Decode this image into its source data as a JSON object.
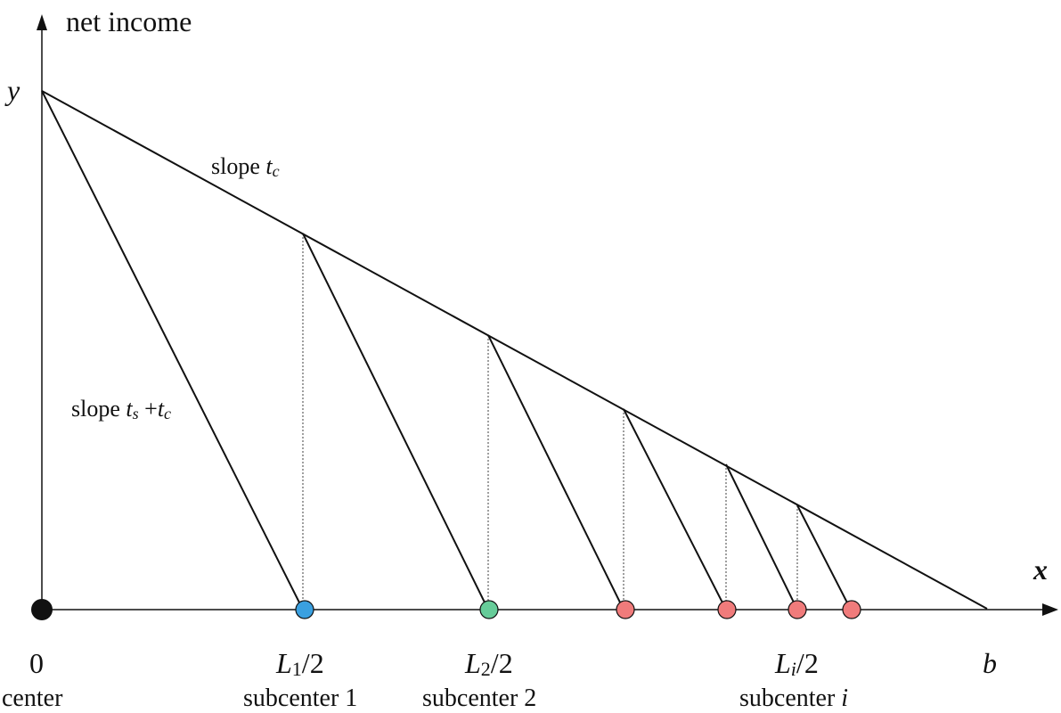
{
  "axes": {
    "y_label": "net income",
    "x_label": "x",
    "y_intercept_label": "y"
  },
  "slopes": {
    "upper_prefix": "slope ",
    "upper_t": "t",
    "upper_sub": "c",
    "lower_prefix": "slope ",
    "lower_t1": "t",
    "lower_sub1": "s",
    "lower_plus": " +",
    "lower_t2": "t",
    "lower_sub2": "c"
  },
  "x_ticks": {
    "origin": "0",
    "end": "b",
    "L1": {
      "letter": "L",
      "sub": "1",
      "rest": "/2"
    },
    "L2": {
      "letter": "L",
      "sub": "2",
      "rest": "/2"
    },
    "Li": {
      "letter": "L",
      "sub": "i",
      "rest": "/2"
    }
  },
  "bottom_labels": {
    "center": "center",
    "sub1": "subcenter 1",
    "sub2": "subcenter 2",
    "subi_text": "subcenter ",
    "subi_i": "i"
  },
  "colors": {
    "line": "#111111",
    "center_dot": "#111111",
    "subcenter1": "#3aa0e0",
    "subcenter2": "#66cc99",
    "subcenter_i": "#f07b7b"
  },
  "subcenters": [
    {
      "id": "subcenter-1",
      "color_key": "subcenter1"
    },
    {
      "id": "subcenter-2",
      "color_key": "subcenter2"
    },
    {
      "id": "subcenter-3",
      "color_key": "subcenter_i"
    },
    {
      "id": "subcenter-4",
      "color_key": "subcenter_i"
    },
    {
      "id": "subcenter-5",
      "color_key": "subcenter_i"
    },
    {
      "id": "subcenter-6",
      "color_key": "subcenter_i"
    }
  ]
}
